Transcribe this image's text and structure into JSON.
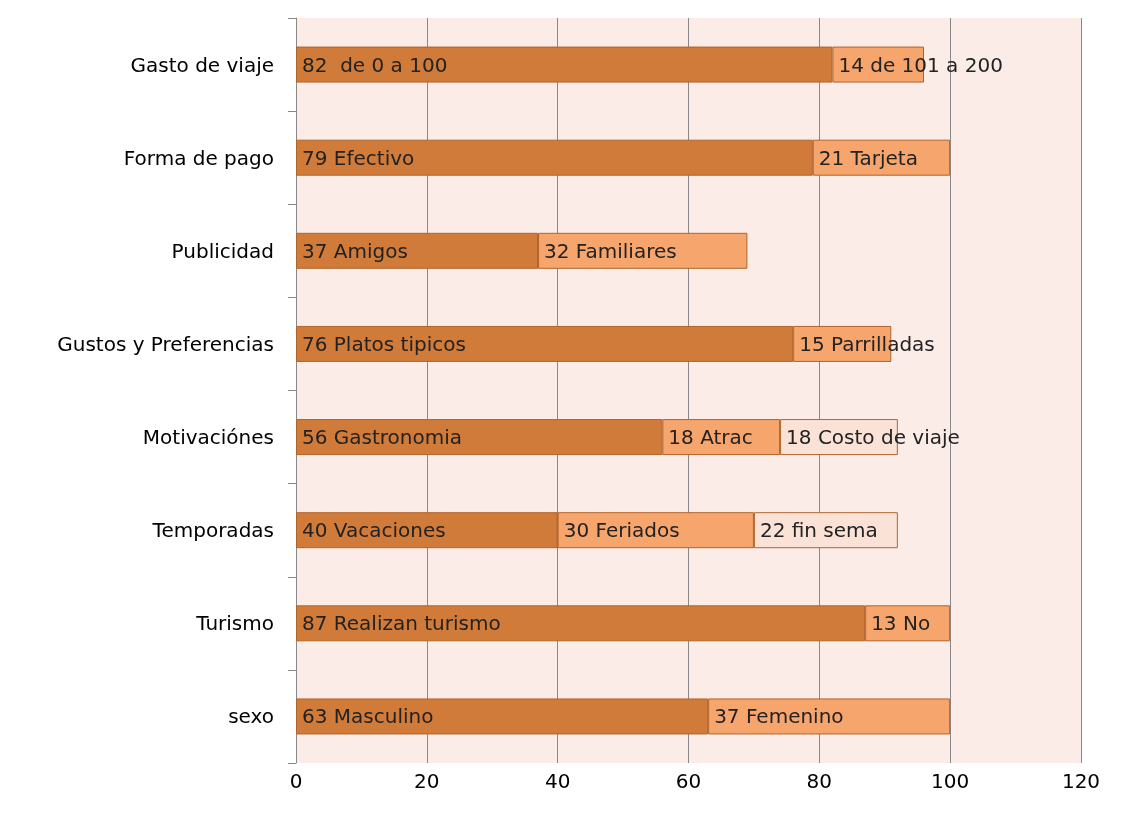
{
  "chart_data": {
    "type": "bar",
    "orientation": "horizontal",
    "stacked": true,
    "categories": [
      "Gasto de viaje",
      "Forma de pago",
      "Publicidad",
      "Gustos y Preferencias",
      "Motivaciónes",
      "Temporadas",
      "Turismo",
      "sexo"
    ],
    "series": [
      {
        "color": "#d07b3a",
        "values": [
          82,
          79,
          37,
          76,
          56,
          40,
          87,
          63
        ],
        "value_labels": [
          "82  de 0 a 100",
          "79 Efectivo",
          "37 Amigos",
          "76 Platos tipicos",
          "56 Gastronomia",
          "40 Vacaciones",
          "87 Realizan turismo",
          "63 Masculino"
        ]
      },
      {
        "color": "#f6a56c",
        "values": [
          14,
          21,
          32,
          15,
          18,
          30,
          13,
          37
        ],
        "value_labels": [
          "14 de 101 a 200",
          "21 Tarjeta",
          "32 Familiares",
          "15 Parrilladas",
          "18 Atrac",
          "30 Feriados",
          "13 No",
          "37 Femenino"
        ]
      },
      {
        "color": "#fbe2d6",
        "values": [
          null,
          null,
          null,
          null,
          18,
          22,
          null,
          null
        ],
        "value_labels": [
          null,
          null,
          null,
          null,
          "18 Costo de viaje",
          "22 fin sema",
          null,
          null
        ]
      }
    ],
    "xlim": [
      0,
      120
    ],
    "xticks": [
      0,
      20,
      40,
      60,
      80,
      100,
      120
    ],
    "grid": "x"
  }
}
